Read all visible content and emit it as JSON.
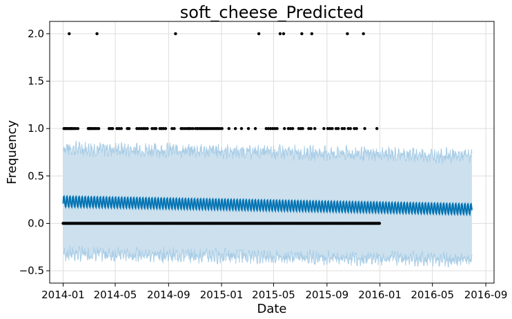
{
  "chart_data": {
    "type": "line",
    "title": "soft_cheese_Predicted",
    "xlabel": "Date",
    "ylabel": "Frequency",
    "x_ticks": [
      "2014-01",
      "2014-05",
      "2014-09",
      "2015-01",
      "2015-05",
      "2015-09",
      "2016-01",
      "2016-05",
      "2016-09"
    ],
    "y_ticks": [
      "−0.5",
      "0.0",
      "0.5",
      "1.0",
      "1.5",
      "2.0"
    ],
    "xlim": [
      "2013-12-01",
      "2016-09-20"
    ],
    "ylim": [
      -0.63,
      2.13
    ],
    "grid": true,
    "colors": {
      "forecast_line": "#0072B2",
      "uncertainty_band": "#cce0ee",
      "uncertainty_edge": "#a9cde6",
      "observed_points": "#000000"
    },
    "series": [
      {
        "role": "forecast",
        "x_start": "2014-01-01",
        "x_end": "2016-07-31",
        "yhat_start": 0.23,
        "yhat_end": 0.15,
        "weekly_amplitude": 0.055
      },
      {
        "role": "uncertainty",
        "lower_start": -0.32,
        "lower_end": -0.38,
        "upper_start": 0.79,
        "upper_end": 0.71
      },
      {
        "role": "observed",
        "points_value_2": [
          "2014-01-15",
          "2014-03-20",
          "2014-09-17",
          "2015-03-28",
          "2015-05-16",
          "2015-05-24",
          "2015-07-05",
          "2015-07-28",
          "2015-10-18",
          "2015-11-24"
        ],
        "points_value_1": [
          "2014-01-03",
          "2014-01-06",
          "2014-01-09",
          "2014-01-12",
          "2014-01-16",
          "2014-01-19",
          "2014-01-22",
          "2014-01-26",
          "2014-01-30",
          "2014-02-04",
          "2014-02-28",
          "2014-03-03",
          "2014-03-06",
          "2014-03-09",
          "2014-03-13",
          "2014-03-16",
          "2014-03-20",
          "2014-03-24",
          "2014-04-17",
          "2014-04-21",
          "2014-04-25",
          "2014-05-05",
          "2014-05-10",
          "2014-05-15",
          "2014-05-29",
          "2014-06-02",
          "2014-06-20",
          "2014-06-25",
          "2014-06-30",
          "2014-07-05",
          "2014-07-09",
          "2014-07-14",
          "2014-07-25",
          "2014-07-30",
          "2014-08-03",
          "2014-08-12",
          "2014-08-16",
          "2014-08-20",
          "2014-08-25",
          "2014-09-09",
          "2014-09-14",
          "2014-09-30",
          "2014-10-04",
          "2014-10-09",
          "2014-10-14",
          "2014-10-18",
          "2014-10-22",
          "2014-10-27",
          "2014-11-02",
          "2014-11-06",
          "2014-11-10",
          "2014-11-14",
          "2014-11-18",
          "2014-11-22",
          "2014-11-26",
          "2014-11-30",
          "2014-12-04",
          "2014-12-08",
          "2014-12-12",
          "2014-12-16",
          "2014-12-20",
          "2014-12-24",
          "2014-12-28",
          "2015-01-02",
          "2015-01-18",
          "2015-02-02",
          "2015-02-16",
          "2015-03-04",
          "2015-03-20",
          "2015-04-14",
          "2015-04-19",
          "2015-04-24",
          "2015-04-29",
          "2015-05-04",
          "2015-05-09",
          "2015-05-26",
          "2015-06-04",
          "2015-06-09",
          "2015-06-14",
          "2015-06-28",
          "2015-07-03",
          "2015-07-07",
          "2015-07-21",
          "2015-07-26",
          "2015-08-04",
          "2015-08-25",
          "2015-09-03",
          "2015-09-08",
          "2015-09-13",
          "2015-09-22",
          "2015-09-27",
          "2015-10-06",
          "2015-10-11",
          "2015-10-20",
          "2015-10-25",
          "2015-11-03",
          "2015-11-08",
          "2015-11-27",
          "2015-12-25"
        ],
        "value_0_start": "2014-01-01",
        "value_0_end": "2016-01-01",
        "value_0_step_days": 3
      }
    ]
  }
}
